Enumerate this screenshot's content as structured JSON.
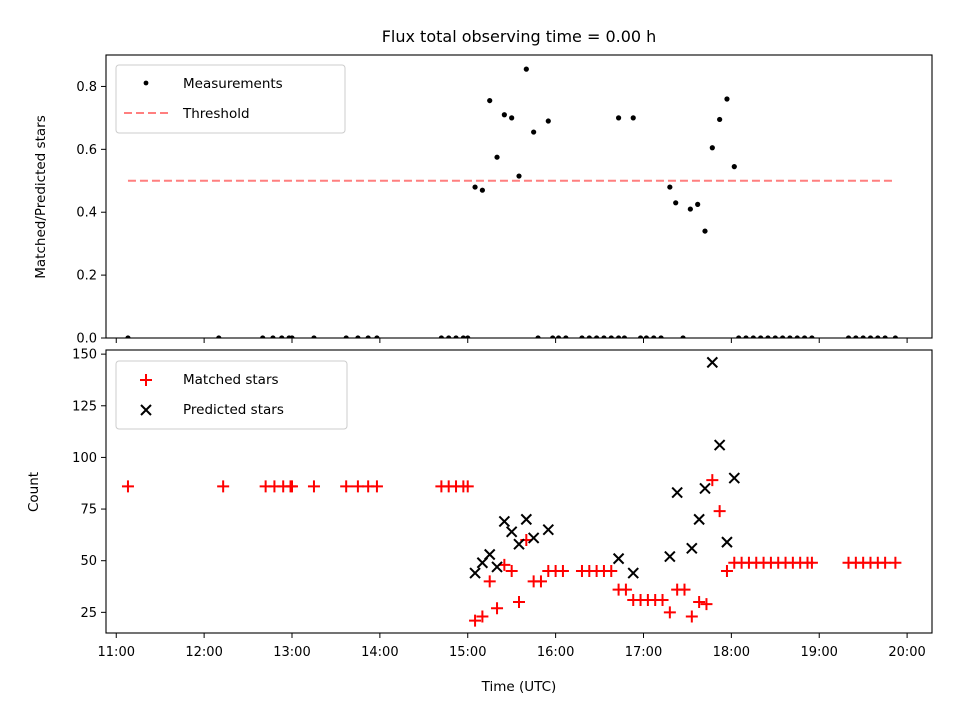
{
  "title": "Flux total observing time = 0.00 h",
  "colors": {
    "measurement": "#000000",
    "threshold": "#ff7f7f",
    "matched": "#ff0000",
    "predicted": "#000000"
  },
  "chart_data": [
    {
      "type": "scatter",
      "panel": "top",
      "title": "Flux total observing time = 0.00 h",
      "ylabel": "Matched/Predicted stars",
      "xlabel": "",
      "xlim": [
        "10:53",
        "20:17"
      ],
      "ylim": [
        0,
        0.9
      ],
      "yticks": [
        0,
        0.2,
        0.4,
        0.6,
        0.8
      ],
      "ytick_labels": [
        "0.0",
        "0.2",
        "0.4",
        "0.6",
        "0.8"
      ],
      "legend_position": "upper-left",
      "series": [
        {
          "name": "Measurements",
          "marker": "dot",
          "color": "#000000",
          "points": [
            [
              "11:08",
              0
            ],
            [
              "12:10",
              0
            ],
            [
              "12:40",
              0
            ],
            [
              "12:47",
              0
            ],
            [
              "12:53",
              0
            ],
            [
              "12:58",
              0
            ],
            [
              "13:00",
              0
            ],
            [
              "13:15",
              0
            ],
            [
              "13:37",
              0
            ],
            [
              "13:45",
              0
            ],
            [
              "13:52",
              0
            ],
            [
              "13:58",
              0
            ],
            [
              "14:42",
              0
            ],
            [
              "14:47",
              0
            ],
            [
              "14:52",
              0
            ],
            [
              "14:57",
              0
            ],
            [
              "15:00",
              0
            ],
            [
              "15:05",
              0.48
            ],
            [
              "15:10",
              0.47
            ],
            [
              "15:15",
              0.755
            ],
            [
              "15:20",
              0.575
            ],
            [
              "15:25",
              0.71
            ],
            [
              "15:30",
              0.7
            ],
            [
              "15:35",
              0.515
            ],
            [
              "15:40",
              0.855
            ],
            [
              "15:45",
              0.655
            ],
            [
              "15:48",
              0
            ],
            [
              "15:55",
              0.69
            ],
            [
              "15:58",
              0
            ],
            [
              "16:02",
              0
            ],
            [
              "16:07",
              0
            ],
            [
              "16:18",
              0
            ],
            [
              "16:23",
              0
            ],
            [
              "16:28",
              0
            ],
            [
              "16:33",
              0
            ],
            [
              "16:38",
              0
            ],
            [
              "16:43",
              0
            ],
            [
              "16:43",
              0.7
            ],
            [
              "16:47",
              0
            ],
            [
              "16:53",
              0.7
            ],
            [
              "16:58",
              0
            ],
            [
              "17:02",
              0
            ],
            [
              "17:07",
              0
            ],
            [
              "17:12",
              0
            ],
            [
              "17:18",
              0.48
            ],
            [
              "17:22",
              0.43
            ],
            [
              "17:27",
              0
            ],
            [
              "17:32",
              0.41
            ],
            [
              "17:37",
              0.425
            ],
            [
              "17:42",
              0.34
            ],
            [
              "17:47",
              0.605
            ],
            [
              "17:52",
              0.695
            ],
            [
              "17:57",
              0.76
            ],
            [
              "18:02",
              0.545
            ],
            [
              "18:05",
              0
            ],
            [
              "18:10",
              0
            ],
            [
              "18:15",
              0
            ],
            [
              "18:20",
              0
            ],
            [
              "18:25",
              0
            ],
            [
              "18:30",
              0
            ],
            [
              "18:35",
              0
            ],
            [
              "18:40",
              0
            ],
            [
              "18:45",
              0
            ],
            [
              "18:50",
              0
            ],
            [
              "18:55",
              0
            ],
            [
              "19:20",
              0
            ],
            [
              "19:25",
              0
            ],
            [
              "19:30",
              0
            ],
            [
              "19:35",
              0
            ],
            [
              "19:40",
              0
            ],
            [
              "19:45",
              0
            ],
            [
              "19:52",
              0
            ]
          ]
        },
        {
          "name": "Threshold",
          "marker": "dashed-line",
          "color": "#ff7f7f",
          "points": [
            [
              "11:08",
              0.5
            ],
            [
              "19:52",
              0.5
            ]
          ]
        }
      ]
    },
    {
      "type": "scatter",
      "panel": "bottom",
      "title": "",
      "xlabel": "Time (UTC)",
      "ylabel": "Count",
      "xlim": [
        "10:53",
        "20:17"
      ],
      "ylim": [
        15,
        152
      ],
      "xticks": [
        "11:00",
        "12:00",
        "13:00",
        "14:00",
        "15:00",
        "16:00",
        "17:00",
        "18:00",
        "19:00",
        "20:00"
      ],
      "yticks": [
        25,
        50,
        75,
        100,
        125,
        150
      ],
      "ytick_labels": [
        "25",
        "50",
        "75",
        "100",
        "125",
        "150"
      ],
      "legend_position": "upper-left",
      "series": [
        {
          "name": "Matched stars",
          "marker": "plus",
          "color": "#ff0000",
          "points": [
            [
              "11:08",
              86
            ],
            [
              "12:13",
              86
            ],
            [
              "12:42",
              86
            ],
            [
              "12:48",
              86
            ],
            [
              "12:54",
              86
            ],
            [
              "12:59",
              86
            ],
            [
              "13:00",
              86
            ],
            [
              "13:15",
              86
            ],
            [
              "13:37",
              86
            ],
            [
              "13:45",
              86
            ],
            [
              "13:52",
              86
            ],
            [
              "13:58",
              86
            ],
            [
              "14:42",
              86
            ],
            [
              "14:47",
              86
            ],
            [
              "14:52",
              86
            ],
            [
              "14:57",
              86
            ],
            [
              "15:00",
              86
            ],
            [
              "15:05",
              21
            ],
            [
              "15:10",
              23
            ],
            [
              "15:15",
              40
            ],
            [
              "15:20",
              27
            ],
            [
              "15:25",
              48
            ],
            [
              "15:30",
              45
            ],
            [
              "15:35",
              30
            ],
            [
              "15:40",
              60
            ],
            [
              "15:45",
              40
            ],
            [
              "15:50",
              40
            ],
            [
              "15:55",
              45
            ],
            [
              "16:00",
              45
            ],
            [
              "16:05",
              45
            ],
            [
              "16:18",
              45
            ],
            [
              "16:23",
              45
            ],
            [
              "16:28",
              45
            ],
            [
              "16:33",
              45
            ],
            [
              "16:38",
              45
            ],
            [
              "16:43",
              36
            ],
            [
              "16:48",
              36
            ],
            [
              "16:53",
              31
            ],
            [
              "16:58",
              31
            ],
            [
              "17:03",
              31
            ],
            [
              "17:08",
              31
            ],
            [
              "17:13",
              31
            ],
            [
              "17:18",
              25
            ],
            [
              "17:23",
              36
            ],
            [
              "17:28",
              36
            ],
            [
              "17:33",
              23
            ],
            [
              "17:38",
              30
            ],
            [
              "17:43",
              29
            ],
            [
              "17:47",
              89
            ],
            [
              "17:52",
              74
            ],
            [
              "17:57",
              45
            ],
            [
              "18:02",
              49
            ],
            [
              "18:07",
              49
            ],
            [
              "18:12",
              49
            ],
            [
              "18:17",
              49
            ],
            [
              "18:22",
              49
            ],
            [
              "18:27",
              49
            ],
            [
              "18:32",
              49
            ],
            [
              "18:37",
              49
            ],
            [
              "18:42",
              49
            ],
            [
              "18:47",
              49
            ],
            [
              "18:52",
              49
            ],
            [
              "18:55",
              49
            ],
            [
              "19:20",
              49
            ],
            [
              "19:25",
              49
            ],
            [
              "19:30",
              49
            ],
            [
              "19:35",
              49
            ],
            [
              "19:40",
              49
            ],
            [
              "19:45",
              49
            ],
            [
              "19:52",
              49
            ]
          ]
        },
        {
          "name": "Predicted stars",
          "marker": "x",
          "color": "#000000",
          "points": [
            [
              "15:05",
              44
            ],
            [
              "15:10",
              49
            ],
            [
              "15:15",
              53
            ],
            [
              "15:20",
              47
            ],
            [
              "15:25",
              69
            ],
            [
              "15:30",
              64
            ],
            [
              "15:35",
              58
            ],
            [
              "15:40",
              70
            ],
            [
              "15:45",
              61
            ],
            [
              "15:55",
              65
            ],
            [
              "16:43",
              51
            ],
            [
              "16:53",
              44
            ],
            [
              "17:18",
              52
            ],
            [
              "17:23",
              83
            ],
            [
              "17:33",
              56
            ],
            [
              "17:38",
              70
            ],
            [
              "17:42",
              85
            ],
            [
              "17:47",
              146
            ],
            [
              "17:52",
              106
            ],
            [
              "17:57",
              59
            ],
            [
              "18:02",
              90
            ]
          ]
        }
      ]
    }
  ]
}
